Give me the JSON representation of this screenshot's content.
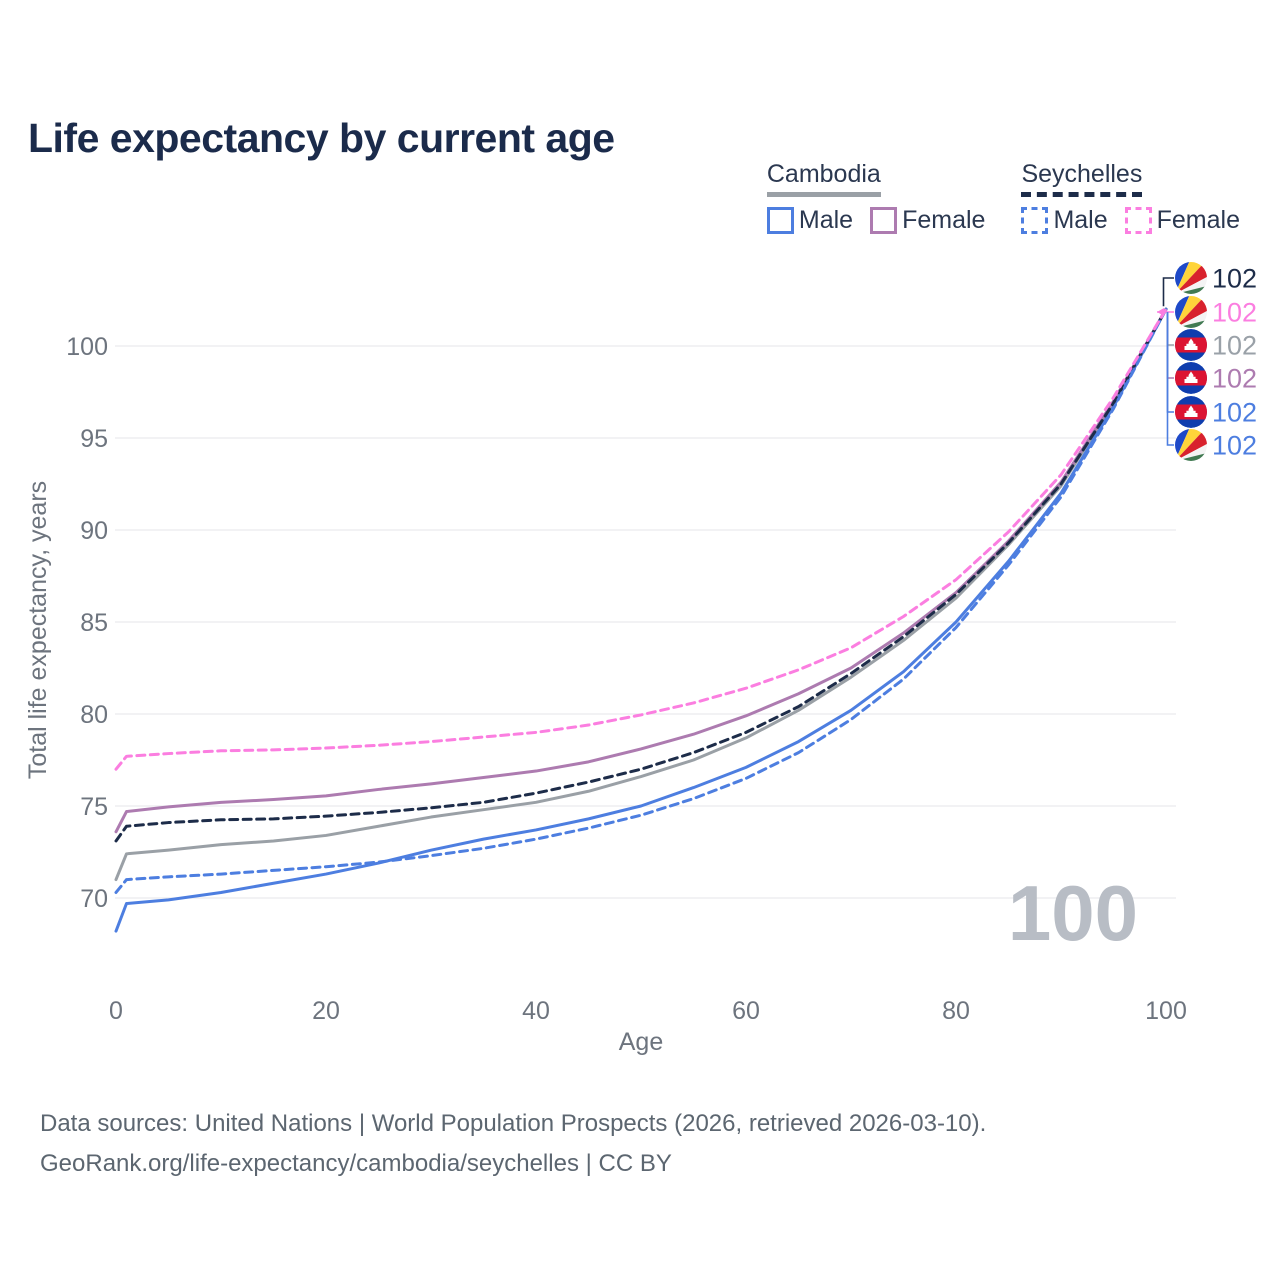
{
  "page": {
    "title": "Life expectancy by current age"
  },
  "legend": {
    "groups": [
      {
        "title": "Cambodia",
        "underline_style": "solid",
        "underline_color": "#9aa0a6",
        "items": [
          {
            "label": "Male",
            "color": "#4d7ee0",
            "dashed": false
          },
          {
            "label": "Female",
            "color": "#ad7bb0",
            "dashed": false
          }
        ]
      },
      {
        "title": "Seychelles",
        "underline_style": "dashed",
        "underline_color": "#1d2c49",
        "items": [
          {
            "label": "Male",
            "color": "#4d7ee0",
            "dashed": true
          },
          {
            "label": "Female",
            "color": "#fb7ee0",
            "dashed": true
          }
        ]
      }
    ]
  },
  "chart_data": {
    "type": "line",
    "title": "Life expectancy by current age",
    "xlabel": "Age",
    "ylabel": "Total life expectancy, years",
    "xlim": [
      0,
      100
    ],
    "ylim": [
      68,
      103
    ],
    "x_ticks": [
      "0",
      "20",
      "40",
      "60",
      "80",
      "100"
    ],
    "x_tick_values": [
      0,
      20,
      40,
      60,
      80,
      100
    ],
    "y_ticks": [
      "70",
      "75",
      "80",
      "85",
      "90",
      "95",
      "100"
    ],
    "y_tick_values": [
      70,
      75,
      80,
      85,
      90,
      95,
      100
    ],
    "grid": "horizontal",
    "legend_position": "top-right",
    "age_indicator": "100",
    "x": [
      0,
      1,
      5,
      10,
      15,
      20,
      25,
      30,
      35,
      40,
      45,
      50,
      55,
      60,
      65,
      70,
      75,
      80,
      85,
      90,
      95,
      100
    ],
    "series": [
      {
        "id": "cambodia_all",
        "name": "Cambodia (all)",
        "color": "#9aa0a6",
        "dashed": false,
        "values": [
          71.0,
          72.4,
          72.6,
          72.9,
          73.1,
          73.4,
          73.9,
          74.4,
          74.8,
          75.2,
          75.8,
          76.6,
          77.5,
          78.7,
          80.2,
          82.0,
          84.0,
          86.3,
          89.2,
          92.4,
          96.9,
          102
        ]
      },
      {
        "id": "cambodia_female",
        "name": "Cambodia Female",
        "color": "#ad7bb0",
        "dashed": false,
        "values": [
          73.6,
          74.7,
          74.95,
          75.2,
          75.35,
          75.55,
          75.9,
          76.2,
          76.55,
          76.9,
          77.4,
          78.1,
          78.9,
          79.9,
          81.1,
          82.5,
          84.4,
          86.6,
          89.4,
          92.6,
          97.0,
          102
        ]
      },
      {
        "id": "cambodia_male",
        "name": "Cambodia Male",
        "color": "#4d7ee0",
        "dashed": false,
        "values": [
          68.2,
          69.7,
          69.9,
          70.3,
          70.8,
          71.3,
          71.9,
          72.6,
          73.2,
          73.7,
          74.3,
          75.0,
          76.0,
          77.1,
          78.5,
          80.2,
          82.3,
          85.0,
          88.3,
          92.0,
          96.7,
          102
        ]
      },
      {
        "id": "seychelles_all",
        "name": "Seychelles (all)",
        "color": "#1d2c49",
        "dashed": true,
        "values": [
          73.1,
          73.9,
          74.1,
          74.25,
          74.3,
          74.45,
          74.65,
          74.9,
          75.2,
          75.7,
          76.3,
          77.0,
          77.9,
          79.0,
          80.4,
          82.2,
          84.2,
          86.5,
          89.3,
          92.5,
          96.9,
          102
        ]
      },
      {
        "id": "seychelles_male",
        "name": "Seychelles Male",
        "color": "#4d7ee0",
        "dashed": true,
        "values": [
          70.3,
          71.0,
          71.15,
          71.3,
          71.5,
          71.7,
          71.95,
          72.3,
          72.7,
          73.2,
          73.8,
          74.5,
          75.4,
          76.5,
          77.9,
          79.7,
          81.9,
          84.7,
          88.1,
          91.8,
          96.6,
          102
        ]
      },
      {
        "id": "seychelles_female",
        "name": "Seychelles Female",
        "color": "#fb7ee0",
        "dashed": true,
        "values": [
          77.0,
          77.7,
          77.85,
          78.0,
          78.05,
          78.15,
          78.3,
          78.5,
          78.75,
          79.0,
          79.4,
          79.95,
          80.6,
          81.4,
          82.4,
          83.6,
          85.3,
          87.3,
          89.9,
          93.0,
          97.2,
          102
        ]
      }
    ],
    "end_labels": [
      {
        "flag": "seychelles",
        "series": "seychelles_all",
        "value": "102",
        "color": "#1d2c49"
      },
      {
        "flag": "seychelles",
        "series": "seychelles_female",
        "value": "102",
        "color": "#fb7ee0"
      },
      {
        "flag": "cambodia",
        "series": "cambodia_all",
        "value": "102",
        "color": "#9aa1a8"
      },
      {
        "flag": "cambodia",
        "series": "cambodia_female",
        "value": "102",
        "color": "#ad7bb0"
      },
      {
        "flag": "cambodia",
        "series": "cambodia_male",
        "value": "102",
        "color": "#4d7ee0"
      },
      {
        "flag": "seychelles",
        "series": "seychelles_male",
        "value": "102",
        "color": "#4d7ee0"
      }
    ]
  },
  "footer": {
    "line1": "Data sources: United Nations | World Population Prospects (2026, retrieved 2026-03-10).",
    "line2": "GeoRank.org/life-expectancy/cambodia/seychelles | CC BY"
  },
  "colors": {
    "title": "#1b2b4b",
    "axis_text": "#6d747e",
    "gridline": "#e9eaee",
    "watermark": "#b8bdc5",
    "footer_text": "#5c6670"
  }
}
